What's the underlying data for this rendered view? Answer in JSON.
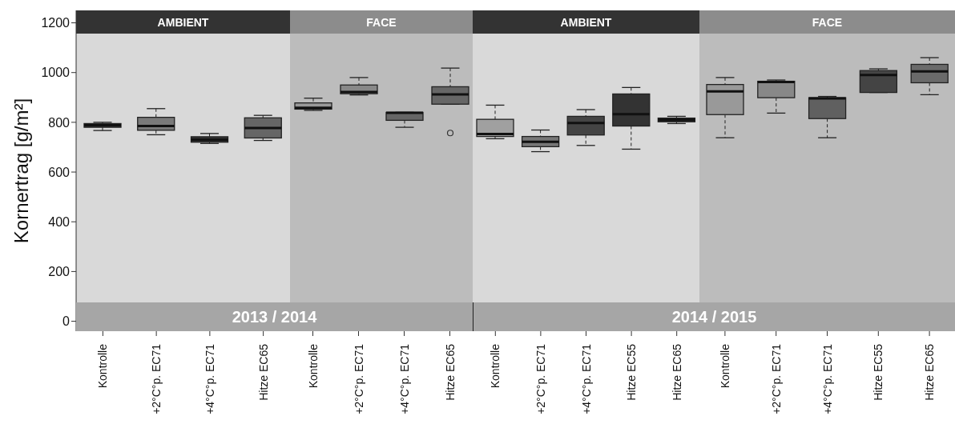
{
  "chart_data": [
    {
      "type": "box",
      "title": "AMBIENT",
      "ylabel": "Kornertrag [g/m²]",
      "annotations": [
        "2013 / 2014"
      ],
      "categories": [
        "Kontrolle",
        "+2°C°p. EC71",
        "+4°C°p. EC71",
        "Hitze EC65"
      ],
      "ylim": [
        -40,
        1250
      ],
      "yticks": [
        0,
        200,
        400,
        600,
        800,
        1000,
        1200
      ],
      "colors": [
        "#3a3a3a",
        "#7a7a7a",
        "#333333",
        "#666666"
      ],
      "boxes": [
        {
          "low": 767,
          "q1": 780,
          "median": 788,
          "q3": 795,
          "high": 800
        },
        {
          "low": 750,
          "q1": 768,
          "median": 785,
          "q3": 820,
          "high": 855
        },
        {
          "low": 715,
          "q1": 720,
          "median": 730,
          "q3": 742,
          "high": 755
        },
        {
          "low": 727,
          "q1": 737,
          "median": 777,
          "q3": 818,
          "high": 828
        }
      ]
    },
    {
      "type": "box",
      "title": "FACE",
      "categories": [
        "Kontrolle",
        "+2°C°p. EC71",
        "+4°C°p. EC71",
        "Hitze EC65"
      ],
      "ylim": [
        -40,
        1250
      ],
      "yticks": [
        0,
        200,
        400,
        600,
        800,
        1000,
        1200
      ],
      "tick_labels": "x",
      "colors": [
        "#999999",
        "#888888",
        "#666666",
        "#666666"
      ],
      "boxes": [
        {
          "low": 848,
          "q1": 853,
          "median": 858,
          "q3": 878,
          "high": 897
        },
        {
          "low": 910,
          "q1": 915,
          "median": 922,
          "q3": 950,
          "high": 980
        },
        {
          "low": 780,
          "q1": 808,
          "median": 838,
          "q3": 840,
          "high": 840
        },
        {
          "low": 873,
          "q1": 873,
          "median": 912,
          "q3": 943,
          "high": 1018,
          "outliers": [
            757
          ]
        }
      ]
    },
    {
      "type": "box",
      "title": "AMBIENT",
      "annotations": [
        "2014 / 2015"
      ],
      "categories": [
        "Kontrolle",
        "+2°C°p. EC71",
        "+4°C°p. EC71",
        "Hitze EC55",
        "Hitze EC65"
      ],
      "ylim": [
        -40,
        1250
      ],
      "yticks": [
        0,
        200,
        400,
        600,
        800,
        1000,
        1200
      ],
      "tick_labels": "x",
      "colors": [
        "#a0a0a0",
        "#777777",
        "#444444",
        "#333333",
        "#333333"
      ],
      "boxes": [
        {
          "low": 734,
          "q1": 743,
          "median": 753,
          "q3": 812,
          "high": 869
        },
        {
          "low": 682,
          "q1": 702,
          "median": 722,
          "q3": 743,
          "high": 769
        },
        {
          "low": 707,
          "q1": 749,
          "median": 797,
          "q3": 824,
          "high": 851
        },
        {
          "low": 692,
          "q1": 785,
          "median": 833,
          "q3": 914,
          "high": 940
        },
        {
          "low": 795,
          "q1": 802,
          "median": 810,
          "q3": 817,
          "high": 824
        }
      ]
    },
    {
      "type": "box",
      "title": "FACE",
      "categories": [
        "Kontrolle",
        "+2°C°p. EC71",
        "+4°C°p. EC71",
        "Hitze EC55",
        "Hitze EC65"
      ],
      "ylim": [
        -40,
        1250
      ],
      "yticks": [
        0,
        200,
        400,
        600,
        800,
        1000,
        1200
      ],
      "tick_labels": "x",
      "colors": [
        "#999999",
        "#888888",
        "#606060",
        "#444444",
        "#6a6a6a"
      ],
      "boxes": [
        {
          "low": 738,
          "q1": 831,
          "median": 924,
          "q3": 952,
          "high": 980
        },
        {
          "low": 837,
          "q1": 899,
          "median": 962,
          "q3": 965,
          "high": 970
        },
        {
          "low": 738,
          "q1": 815,
          "median": 896,
          "q3": 899,
          "high": 904
        },
        {
          "low": 920,
          "q1": 920,
          "median": 990,
          "q3": 1008,
          "high": 1015
        },
        {
          "low": 911,
          "q1": 959,
          "median": 1005,
          "q3": 1033,
          "high": 1060
        }
      ]
    }
  ]
}
